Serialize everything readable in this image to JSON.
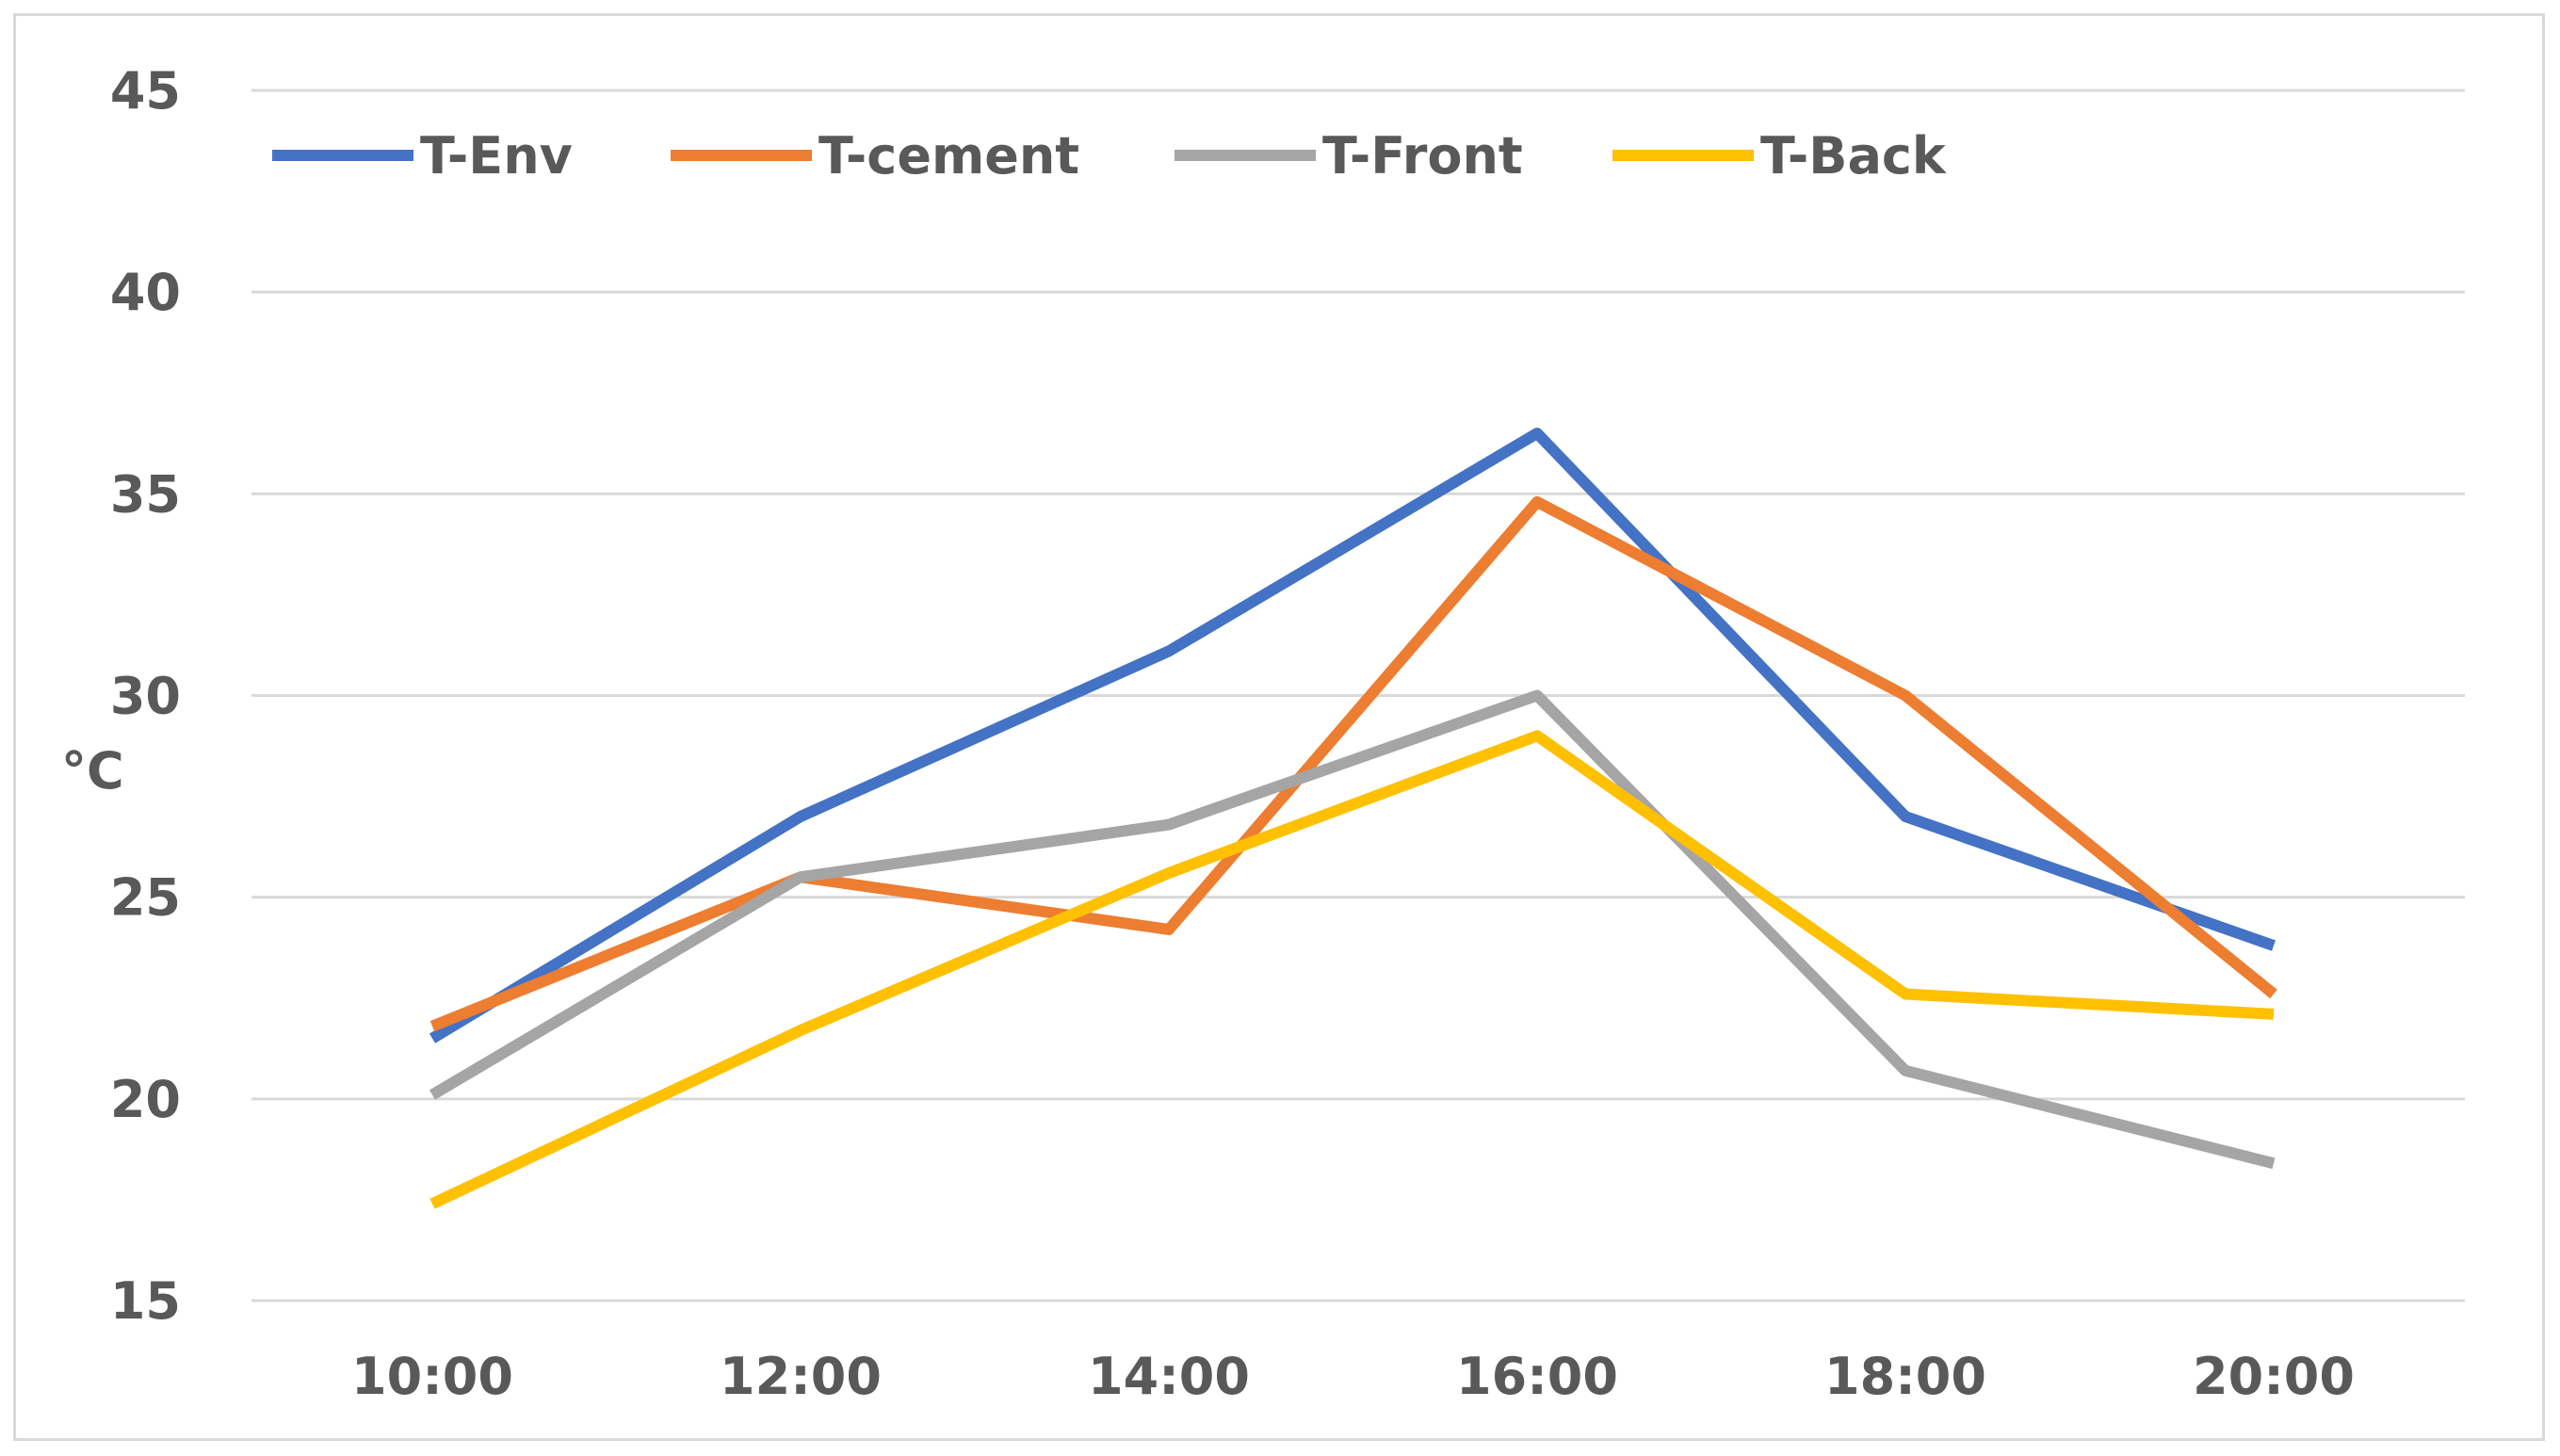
{
  "chart_data": {
    "type": "line",
    "title": "",
    "xlabel": "",
    "ylabel": "°C",
    "categories": [
      "10:00",
      "12:00",
      "14:00",
      "16:00",
      "18:00",
      "20:00"
    ],
    "ylim": [
      15,
      45
    ],
    "yticks": [
      15,
      20,
      25,
      30,
      35,
      40,
      45
    ],
    "grid": true,
    "legend_position": "top-left",
    "series": [
      {
        "name": "T-Env",
        "color": "#4472c4",
        "values": [
          21.5,
          27.0,
          31.1,
          36.5,
          27.0,
          23.8
        ]
      },
      {
        "name": "T-cement",
        "color": "#ed7d31",
        "values": [
          21.8,
          25.5,
          24.2,
          34.8,
          30.0,
          22.6
        ]
      },
      {
        "name": "T-Front",
        "color": "#a5a5a5",
        "values": [
          20.1,
          25.5,
          26.8,
          30.0,
          20.7,
          18.4
        ]
      },
      {
        "name": "T-Back",
        "color": "#ffc000",
        "values": [
          17.4,
          21.7,
          25.6,
          29.0,
          22.6,
          22.1
        ]
      }
    ]
  }
}
